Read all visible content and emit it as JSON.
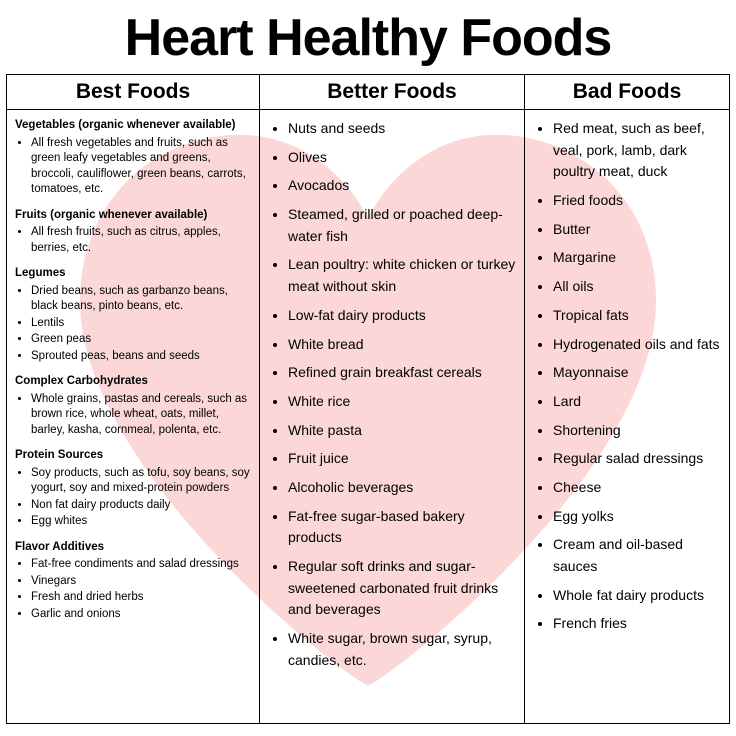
{
  "title": "Heart Healthy Foods",
  "columns": {
    "best": {
      "header": "Best Foods",
      "sections": [
        {
          "heading": "Vegetables (organic whenever available)",
          "items": [
            "All fresh vegetables and fruits, such as green leafy vegetables and greens, broccoli, cauliflower, green beans, carrots, tomatoes, etc."
          ]
        },
        {
          "heading": "Fruits (organic whenever available)",
          "items": [
            "All fresh fruits, such as citrus, apples, berries, etc."
          ]
        },
        {
          "heading": "Legumes",
          "items": [
            "Dried beans, such as garbanzo beans, black beans, pinto beans, etc.",
            "Lentils",
            "Green peas",
            "Sprouted peas, beans and seeds"
          ]
        },
        {
          "heading": "Complex Carbohydrates",
          "items": [
            "Whole grains, pastas and cereals, such as brown rice, whole wheat, oats, millet, barley, kasha, cornmeal, polenta, etc."
          ]
        },
        {
          "heading": "Protein Sources",
          "items": [
            "Soy products, such as tofu, soy beans, soy yogurt, soy and mixed-protein powders",
            "Non fat dairy products daily",
            "Egg whites"
          ]
        },
        {
          "heading": "Flavor Additives",
          "items": [
            "Fat-free condiments and salad dressings",
            "Vinegars",
            "Fresh and dried herbs",
            "Garlic and onions"
          ]
        }
      ]
    },
    "better": {
      "header": "Better Foods",
      "items": [
        "Nuts and seeds",
        "Olives",
        "Avocados",
        "Steamed, grilled or poached deep-water fish",
        "Lean poultry: white chicken or turkey meat without skin",
        "Low-fat dairy products",
        "White bread",
        "Refined grain breakfast cereals",
        "White rice",
        "White pasta",
        "Fruit juice",
        "Alcoholic beverages",
        "Fat-free sugar-based bakery products",
        "Regular soft drinks and sugar-sweetened carbonated fruit drinks and beverages",
        "White sugar, brown sugar, syrup, candies, etc."
      ]
    },
    "bad": {
      "header": "Bad Foods",
      "items": [
        "Red meat, such as beef, veal, pork, lamb, dark poultry meat, duck",
        "Fried foods",
        "Butter",
        "Margarine",
        "All oils",
        "Tropical fats",
        "Hydrogenated oils and fats",
        "Mayonnaise",
        "Lard",
        "Shortening",
        "Regular salad dressings",
        "Cheese",
        "Egg yolks",
        "Cream and oil-based sauces",
        "Whole fat dairy products",
        "French fries"
      ]
    }
  },
  "style": {
    "heart_color": "#f7a8a8",
    "heart_opacity": 0.45,
    "border_color": "#000000",
    "background_color": "#ffffff",
    "title_fontsize": 52,
    "header_fontsize": 21,
    "body_fontsize_col1": 11.5,
    "body_fontsize_big": 14,
    "font_family": "Arial"
  }
}
